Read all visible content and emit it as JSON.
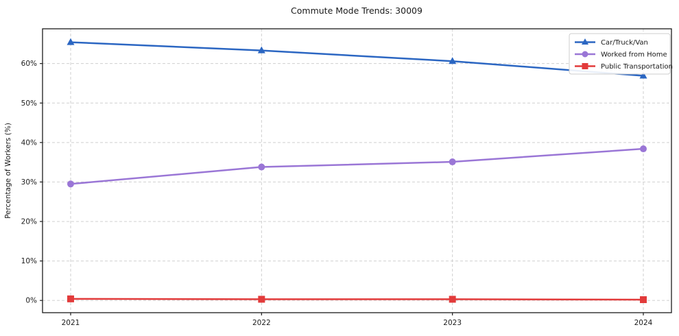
{
  "chart_data": {
    "type": "line",
    "title": "Commute Mode Trends: 30009",
    "xlabel": "",
    "ylabel": "Percentage of Workers (%)",
    "categories": [
      "2021",
      "2022",
      "2023",
      "2024"
    ],
    "series": [
      {
        "name": "Car/Truck/Van",
        "values": [
          65.4,
          63.3,
          60.6,
          56.9
        ],
        "color": "#2b66c2",
        "marker": "triangle"
      },
      {
        "name": "Worked from Home",
        "values": [
          29.5,
          33.8,
          35.1,
          38.4
        ],
        "color": "#9a76d6",
        "marker": "circle"
      },
      {
        "name": "Public Transportation",
        "values": [
          0.4,
          0.3,
          0.3,
          0.2
        ],
        "color": "#e23b3b",
        "marker": "square"
      }
    ],
    "ylim": [
      -3.1,
      68.8
    ],
    "yticks": [
      0,
      10,
      20,
      30,
      40,
      50,
      60
    ],
    "ytick_labels": [
      "0%",
      "10%",
      "20%",
      "30%",
      "40%",
      "50%",
      "60%"
    ],
    "grid": true,
    "grid_style": "dashed",
    "grid_color": "#cfcfcf",
    "spine_color": "#1a1a1a",
    "legend_position": "top-right",
    "legend_border_color": "#cccccc",
    "background_color": "#ffffff"
  }
}
